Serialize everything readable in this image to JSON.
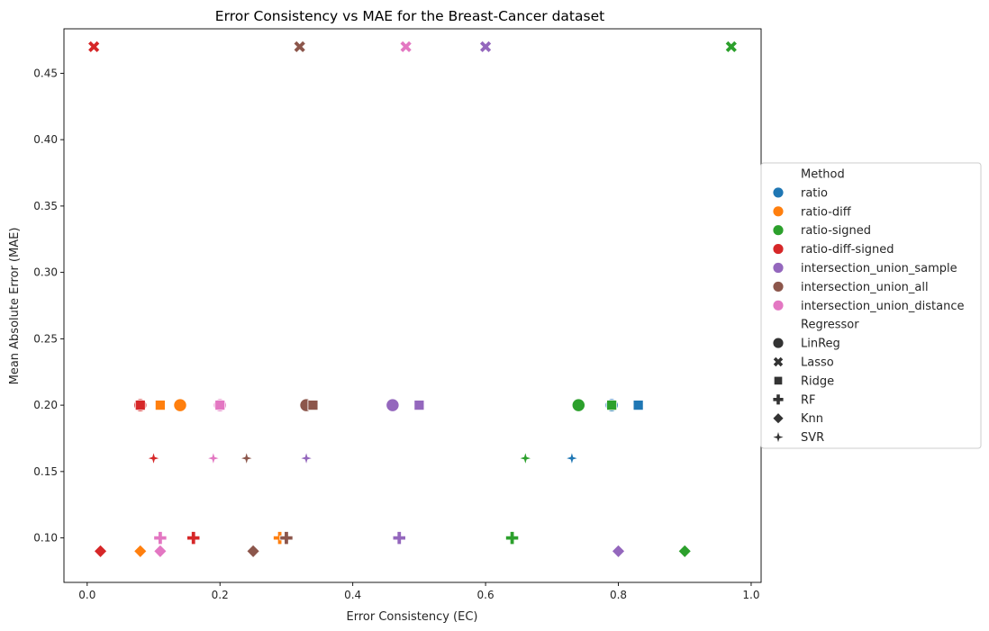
{
  "chart_data": {
    "type": "scatter",
    "title": "Error Consistency vs MAE for the Breast-Cancer dataset",
    "xlabel": "Error Consistency (EC)",
    "ylabel": "Mean Absolute Error (MAE)",
    "xlim": [
      -0.035,
      1.015
    ],
    "ylim": [
      0.0665,
      0.4835
    ],
    "xticks": [
      "0.0",
      "0.2",
      "0.4",
      "0.6",
      "0.8",
      "1.0"
    ],
    "xtick_values": [
      0.0,
      0.2,
      0.4,
      0.6,
      0.8,
      1.0
    ],
    "yticks": [
      "0.10",
      "0.15",
      "0.20",
      "0.25",
      "0.30",
      "0.35",
      "0.40",
      "0.45"
    ],
    "ytick_values": [
      0.1,
      0.15,
      0.2,
      0.25,
      0.3,
      0.35,
      0.4,
      0.45
    ],
    "grid": false,
    "legend_placement": "right-outside",
    "legend": {
      "hue_title": "Method",
      "style_title": "Regressor",
      "methods": [
        {
          "name": "ratio",
          "color": "#1f77b4"
        },
        {
          "name": "ratio-diff",
          "color": "#ff7f0e"
        },
        {
          "name": "ratio-signed",
          "color": "#2ca02c"
        },
        {
          "name": "ratio-diff-signed",
          "color": "#d62728"
        },
        {
          "name": "intersection_union_sample",
          "color": "#9467bd"
        },
        {
          "name": "intersection_union_all",
          "color": "#8c564b"
        },
        {
          "name": "intersection_union_distance",
          "color": "#e377c2"
        }
      ],
      "regressors": [
        {
          "name": "LinReg",
          "marker": "circle"
        },
        {
          "name": "Lasso",
          "marker": "x"
        },
        {
          "name": "Ridge",
          "marker": "square"
        },
        {
          "name": "RF",
          "marker": "plus"
        },
        {
          "name": "Knn",
          "marker": "diamond"
        },
        {
          "name": "SVR",
          "marker": "star"
        }
      ]
    },
    "points": [
      {
        "method": "ratio",
        "regressor": "LinReg",
        "x": 0.79,
        "y": 0.2
      },
      {
        "method": "ratio",
        "regressor": "Ridge",
        "x": 0.83,
        "y": 0.2
      },
      {
        "method": "ratio",
        "regressor": "SVR",
        "x": 0.73,
        "y": 0.16
      },
      {
        "method": "ratio-diff",
        "regressor": "LinReg",
        "x": 0.14,
        "y": 0.2
      },
      {
        "method": "ratio-diff",
        "regressor": "Ridge",
        "x": 0.11,
        "y": 0.2
      },
      {
        "method": "ratio-diff",
        "regressor": "RF",
        "x": 0.29,
        "y": 0.1
      },
      {
        "method": "ratio-diff",
        "regressor": "Knn",
        "x": 0.08,
        "y": 0.09
      },
      {
        "method": "ratio-signed",
        "regressor": "LinReg",
        "x": 0.74,
        "y": 0.2
      },
      {
        "method": "ratio-signed",
        "regressor": "Lasso",
        "x": 0.97,
        "y": 0.47
      },
      {
        "method": "ratio-signed",
        "regressor": "Ridge",
        "x": 0.79,
        "y": 0.2
      },
      {
        "method": "ratio-signed",
        "regressor": "RF",
        "x": 0.64,
        "y": 0.1
      },
      {
        "method": "ratio-signed",
        "regressor": "Knn",
        "x": 0.9,
        "y": 0.09
      },
      {
        "method": "ratio-signed",
        "regressor": "SVR",
        "x": 0.66,
        "y": 0.16
      },
      {
        "method": "ratio-diff-signed",
        "regressor": "LinReg",
        "x": 0.08,
        "y": 0.2
      },
      {
        "method": "ratio-diff-signed",
        "regressor": "Lasso",
        "x": 0.01,
        "y": 0.47
      },
      {
        "method": "ratio-diff-signed",
        "regressor": "Ridge",
        "x": 0.08,
        "y": 0.2
      },
      {
        "method": "ratio-diff-signed",
        "regressor": "RF",
        "x": 0.16,
        "y": 0.1
      },
      {
        "method": "ratio-diff-signed",
        "regressor": "Knn",
        "x": 0.02,
        "y": 0.09
      },
      {
        "method": "ratio-diff-signed",
        "regressor": "SVR",
        "x": 0.1,
        "y": 0.16
      },
      {
        "method": "intersection_union_sample",
        "regressor": "LinReg",
        "x": 0.46,
        "y": 0.2
      },
      {
        "method": "intersection_union_sample",
        "regressor": "Lasso",
        "x": 0.6,
        "y": 0.47
      },
      {
        "method": "intersection_union_sample",
        "regressor": "Ridge",
        "x": 0.5,
        "y": 0.2
      },
      {
        "method": "intersection_union_sample",
        "regressor": "RF",
        "x": 0.47,
        "y": 0.1
      },
      {
        "method": "intersection_union_sample",
        "regressor": "Knn",
        "x": 0.8,
        "y": 0.09
      },
      {
        "method": "intersection_union_sample",
        "regressor": "SVR",
        "x": 0.33,
        "y": 0.16
      },
      {
        "method": "intersection_union_all",
        "regressor": "LinReg",
        "x": 0.33,
        "y": 0.2
      },
      {
        "method": "intersection_union_all",
        "regressor": "Lasso",
        "x": 0.32,
        "y": 0.47
      },
      {
        "method": "intersection_union_all",
        "regressor": "Ridge",
        "x": 0.34,
        "y": 0.2
      },
      {
        "method": "intersection_union_all",
        "regressor": "RF",
        "x": 0.3,
        "y": 0.1
      },
      {
        "method": "intersection_union_all",
        "regressor": "Knn",
        "x": 0.25,
        "y": 0.09
      },
      {
        "method": "intersection_union_all",
        "regressor": "SVR",
        "x": 0.24,
        "y": 0.16
      },
      {
        "method": "intersection_union_distance",
        "regressor": "LinReg",
        "x": 0.2,
        "y": 0.2
      },
      {
        "method": "intersection_union_distance",
        "regressor": "Lasso",
        "x": 0.48,
        "y": 0.47
      },
      {
        "method": "intersection_union_distance",
        "regressor": "Ridge",
        "x": 0.2,
        "y": 0.2
      },
      {
        "method": "intersection_union_distance",
        "regressor": "RF",
        "x": 0.11,
        "y": 0.1
      },
      {
        "method": "intersection_union_distance",
        "regressor": "Knn",
        "x": 0.11,
        "y": 0.09
      },
      {
        "method": "intersection_union_distance",
        "regressor": "SVR",
        "x": 0.19,
        "y": 0.16
      }
    ]
  }
}
